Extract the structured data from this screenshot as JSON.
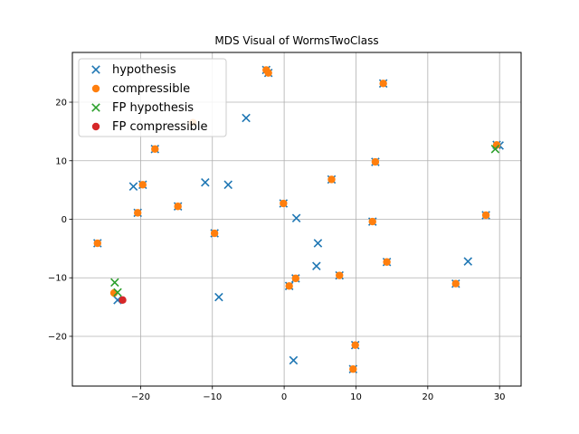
{
  "chart_data": {
    "type": "scatter",
    "title": "MDS Visual of WormsTwoClass",
    "xlabel": "",
    "ylabel": "",
    "xlim": [
      -29.5,
      33
    ],
    "ylim": [
      -28.5,
      28.5
    ],
    "xticks": [
      -20,
      -10,
      0,
      10,
      20,
      30
    ],
    "yticks": [
      -20,
      -10,
      0,
      10,
      20
    ],
    "grid": true,
    "legend_position": "top-left",
    "series": [
      {
        "name": "hypothesis",
        "marker": "x",
        "color": "#1f77b4",
        "points": [
          [
            -2.5,
            25.5
          ],
          [
            -2.2,
            25.0
          ],
          [
            -5.3,
            17.3
          ],
          [
            -21.0,
            5.6
          ],
          [
            -11.0,
            6.3
          ],
          [
            -7.8,
            5.9
          ],
          [
            6.6,
            6.8
          ],
          [
            1.7,
            0.2
          ],
          [
            4.7,
            -4.1
          ],
          [
            4.5,
            -8.0
          ],
          [
            -9.1,
            -13.3
          ],
          [
            1.3,
            -24.1
          ],
          [
            25.6,
            -7.2
          ],
          [
            30.0,
            12.6
          ],
          [
            -23.2,
            -13.8
          ],
          [
            13.8,
            23.2
          ],
          [
            -18.0,
            12.0
          ],
          [
            -26.0,
            -4.1
          ],
          [
            -20.4,
            1.1
          ],
          [
            -19.7,
            5.9
          ],
          [
            -14.8,
            2.2
          ],
          [
            -9.7,
            -2.4
          ],
          [
            -0.1,
            2.7
          ],
          [
            12.7,
            9.8
          ],
          [
            12.3,
            -0.4
          ],
          [
            28.1,
            0.7
          ],
          [
            14.3,
            -7.3
          ],
          [
            7.7,
            -9.6
          ],
          [
            1.6,
            -10.1
          ],
          [
            0.7,
            -11.4
          ],
          [
            23.9,
            -11.0
          ],
          [
            9.9,
            -21.5
          ],
          [
            9.6,
            -25.6
          ],
          [
            29.6,
            12.7
          ]
        ]
      },
      {
        "name": "compressible",
        "marker": "o",
        "color": "#ff7f0e",
        "points": [
          [
            -2.5,
            25.5
          ],
          [
            -2.2,
            25.0
          ],
          [
            13.8,
            23.2
          ],
          [
            -18.0,
            12.0
          ],
          [
            -12.7,
            16.5
          ],
          [
            -19.7,
            5.9
          ],
          [
            -20.4,
            1.1
          ],
          [
            -14.8,
            2.2
          ],
          [
            -9.7,
            -2.4
          ],
          [
            -26.0,
            -4.1
          ],
          [
            -0.1,
            2.7
          ],
          [
            6.6,
            6.8
          ],
          [
            12.7,
            9.8
          ],
          [
            12.3,
            -0.4
          ],
          [
            29.6,
            12.7
          ],
          [
            28.1,
            0.7
          ],
          [
            14.3,
            -7.3
          ],
          [
            7.7,
            -9.6
          ],
          [
            1.6,
            -10.1
          ],
          [
            0.7,
            -11.4
          ],
          [
            23.9,
            -11.0
          ],
          [
            9.9,
            -21.5
          ],
          [
            9.6,
            -25.6
          ],
          [
            -23.7,
            -12.6
          ]
        ]
      },
      {
        "name": "FP hypothesis",
        "marker": "x",
        "color": "#2ca02c",
        "points": [
          [
            -23.6,
            -10.8
          ],
          [
            -23.2,
            -12.5
          ],
          [
            29.4,
            12.0
          ]
        ]
      },
      {
        "name": "FP compressible",
        "marker": "o",
        "color": "#d62728",
        "points": [
          [
            -22.5,
            -13.8
          ]
        ]
      }
    ]
  }
}
